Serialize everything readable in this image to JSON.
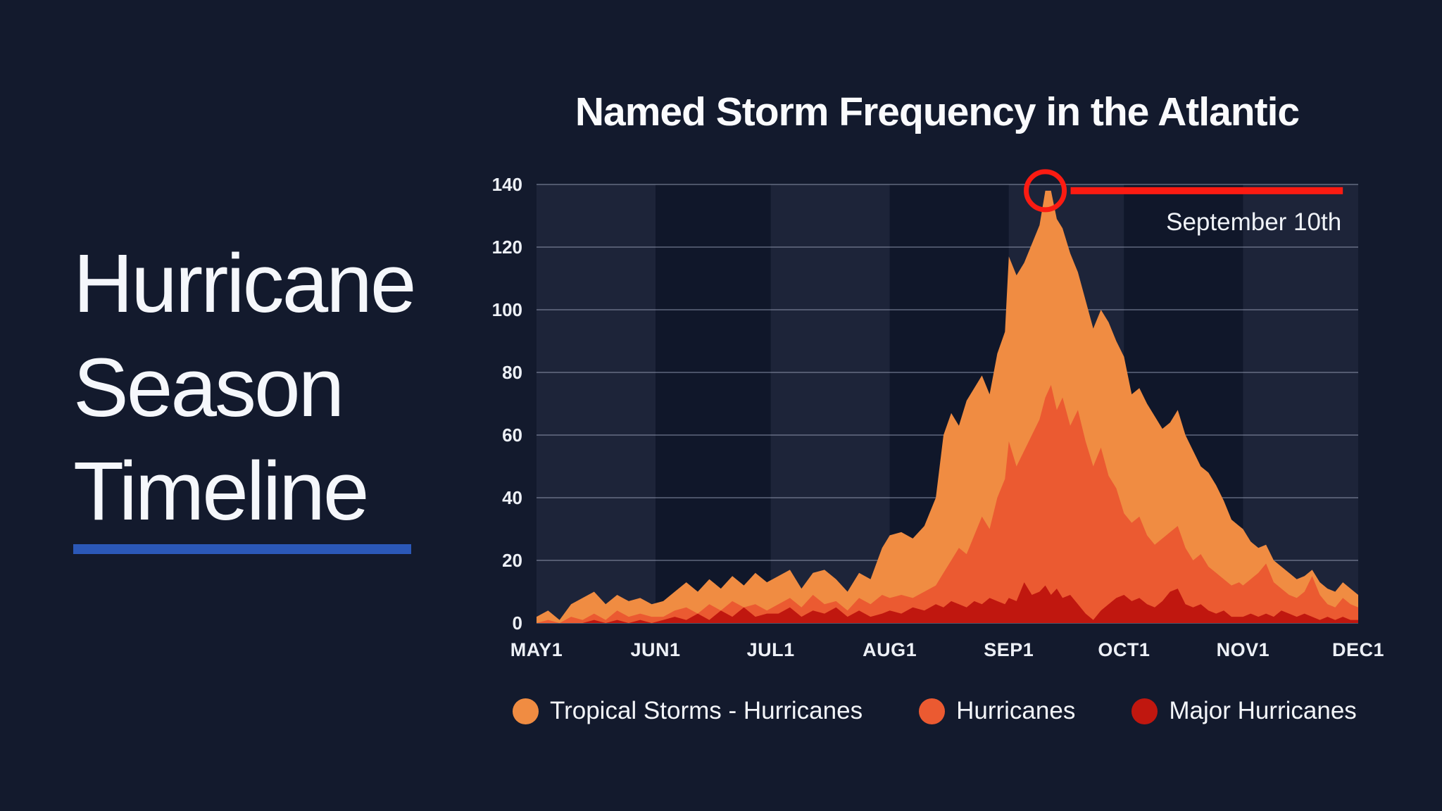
{
  "page": {
    "background": "#131A2D"
  },
  "sidebar": {
    "title_lines": [
      "Hurricane",
      "Season",
      "Timeline"
    ],
    "underline_color": "#2B58B8"
  },
  "chart": {
    "title": "Named Storm Frequency in the Atlantic",
    "annotation": {
      "label": "September 10th",
      "color": "#FB1B12",
      "peak_day": 132.5,
      "peak_value": 138,
      "line_end_day": 210
    },
    "plot_style": {
      "band_light": "#1D2439",
      "band_dark": "#10172A",
      "gridline_color": "#ADB5CC"
    }
  },
  "chart_data": {
    "type": "area",
    "title": "Named Storm Frequency in the Atlantic",
    "x_unit": "days_since_may_1",
    "x_ticks": [
      {
        "day": 0,
        "label": "MAY1"
      },
      {
        "day": 31,
        "label": "JUN1"
      },
      {
        "day": 61,
        "label": "JUL1"
      },
      {
        "day": 92,
        "label": "AUG1"
      },
      {
        "day": 123,
        "label": "SEP1"
      },
      {
        "day": 153,
        "label": "OCT1"
      },
      {
        "day": 184,
        "label": "NOV1"
      },
      {
        "day": 214,
        "label": "DEC1"
      }
    ],
    "ylim": [
      0,
      140
    ],
    "y_ticks": [
      0,
      20,
      40,
      60,
      80,
      100,
      120,
      140
    ],
    "grid": "horizontal",
    "legend_position": "bottom",
    "annotation": "Peak of season September 10th, value 138",
    "x": [
      0,
      3,
      6,
      9,
      12,
      15,
      18,
      21,
      24,
      27,
      30,
      33,
      36,
      39,
      42,
      45,
      48,
      51,
      54,
      57,
      60,
      63,
      66,
      69,
      72,
      75,
      78,
      81,
      84,
      87,
      90,
      92,
      95,
      98,
      101,
      104,
      106,
      108,
      110,
      112,
      114,
      116,
      118,
      120,
      122,
      123,
      125,
      127,
      129,
      131,
      132.5,
      134,
      135.5,
      137,
      139,
      141,
      143,
      145,
      147,
      149,
      151,
      153,
      155,
      157,
      159,
      161,
      163,
      165,
      167,
      169,
      171,
      173,
      175,
      177,
      179,
      181,
      183,
      184,
      186,
      188,
      190,
      192,
      194,
      196,
      198,
      200,
      202,
      204,
      206,
      208,
      210,
      212,
      214
    ],
    "series": [
      {
        "name": "Tropical Storms - Hurricanes",
        "color": "#F08C42",
        "values": [
          2,
          4,
          1,
          6,
          8,
          10,
          6,
          9,
          7,
          8,
          6,
          7,
          10,
          13,
          10,
          14,
          11,
          15,
          12,
          16,
          13,
          15,
          17,
          11,
          16,
          17,
          14,
          10,
          16,
          14,
          24,
          28,
          29,
          27,
          31,
          40,
          60,
          67,
          63,
          71,
          75,
          79,
          73,
          86,
          93,
          117,
          111,
          115,
          121,
          127,
          138,
          138,
          129,
          126,
          118,
          112,
          103,
          94,
          100,
          96,
          90,
          85,
          73,
          75,
          70,
          66,
          62,
          64,
          68,
          60,
          55,
          50,
          48,
          44,
          39,
          33,
          31,
          30,
          26,
          24,
          25,
          20,
          18,
          16,
          14,
          15,
          17,
          13,
          11,
          10,
          13,
          11,
          9
        ]
      },
      {
        "name": "Hurricanes",
        "color": "#EB5A31",
        "values": [
          0,
          1,
          0,
          2,
          1,
          3,
          1,
          4,
          2,
          3,
          2,
          2,
          4,
          5,
          3,
          6,
          4,
          7,
          5,
          6,
          4,
          6,
          8,
          5,
          9,
          6,
          7,
          4,
          8,
          6,
          9,
          8,
          9,
          8,
          10,
          12,
          16,
          20,
          24,
          22,
          28,
          34,
          30,
          40,
          46,
          58,
          50,
          55,
          60,
          65,
          72,
          76,
          68,
          72,
          63,
          68,
          58,
          50,
          56,
          47,
          43,
          35,
          32,
          34,
          28,
          25,
          27,
          29,
          31,
          24,
          20,
          22,
          18,
          16,
          14,
          12,
          13,
          12,
          14,
          16,
          19,
          13,
          11,
          9,
          8,
          10,
          15,
          9,
          6,
          5,
          8,
          6,
          5
        ]
      },
      {
        "name": "Major Hurricanes",
        "color": "#C0170F",
        "values": [
          0,
          0,
          0,
          0,
          0,
          1,
          0,
          1,
          0,
          1,
          0,
          1,
          2,
          1,
          3,
          1,
          4,
          2,
          5,
          2,
          3,
          3,
          5,
          2,
          4,
          3,
          5,
          2,
          4,
          2,
          3,
          4,
          3,
          5,
          4,
          6,
          5,
          7,
          6,
          5,
          7,
          6,
          8,
          7,
          6,
          8,
          7,
          13,
          9,
          10,
          12,
          9,
          11,
          8,
          9,
          6,
          3,
          1,
          4,
          6,
          8,
          9,
          7,
          8,
          6,
          5,
          7,
          10,
          11,
          6,
          5,
          6,
          4,
          3,
          4,
          2,
          2,
          2,
          3,
          2,
          3,
          2,
          4,
          3,
          2,
          3,
          2,
          1,
          2,
          1,
          2,
          1,
          1
        ]
      }
    ]
  }
}
